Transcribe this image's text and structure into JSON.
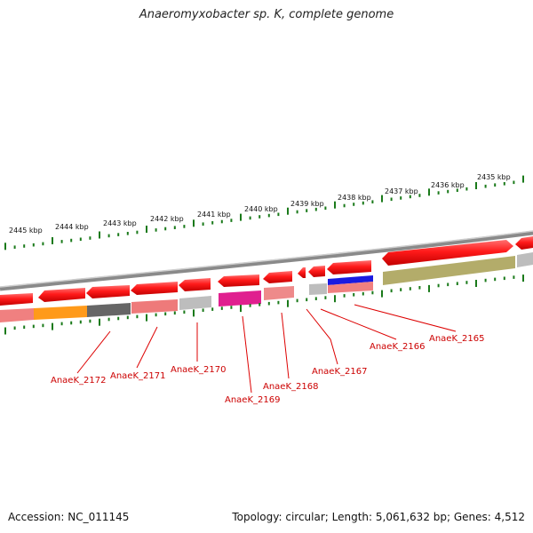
{
  "title": "Anaeromyxobacter sp. K, complete genome",
  "footer": {
    "accession": "Accession: NC_011145",
    "summary": "Topology: circular; Length: 5,061,632 bp; Genes: 4,512"
  },
  "colors": {
    "gene_arrow": "#ee1111",
    "tick_green": "#1a7a1a",
    "label_red": "#cc0000",
    "backbone": "#8a8a8a"
  },
  "kbp_labels": [
    "2445 kbp",
    "2444 kbp",
    "2443 kbp",
    "2442 kbp",
    "2441 kbp",
    "2440 kbp",
    "2439 kbp",
    "2438 kbp",
    "2437 kbp",
    "2436 kbp",
    "2435 kbp"
  ],
  "gene_labels": [
    "AnaeK_2172",
    "AnaeK_2171",
    "AnaeK_2170",
    "AnaeK_2169",
    "AnaeK_2168",
    "AnaeK_2167",
    "AnaeK_2166",
    "AnaeK_2165"
  ]
}
